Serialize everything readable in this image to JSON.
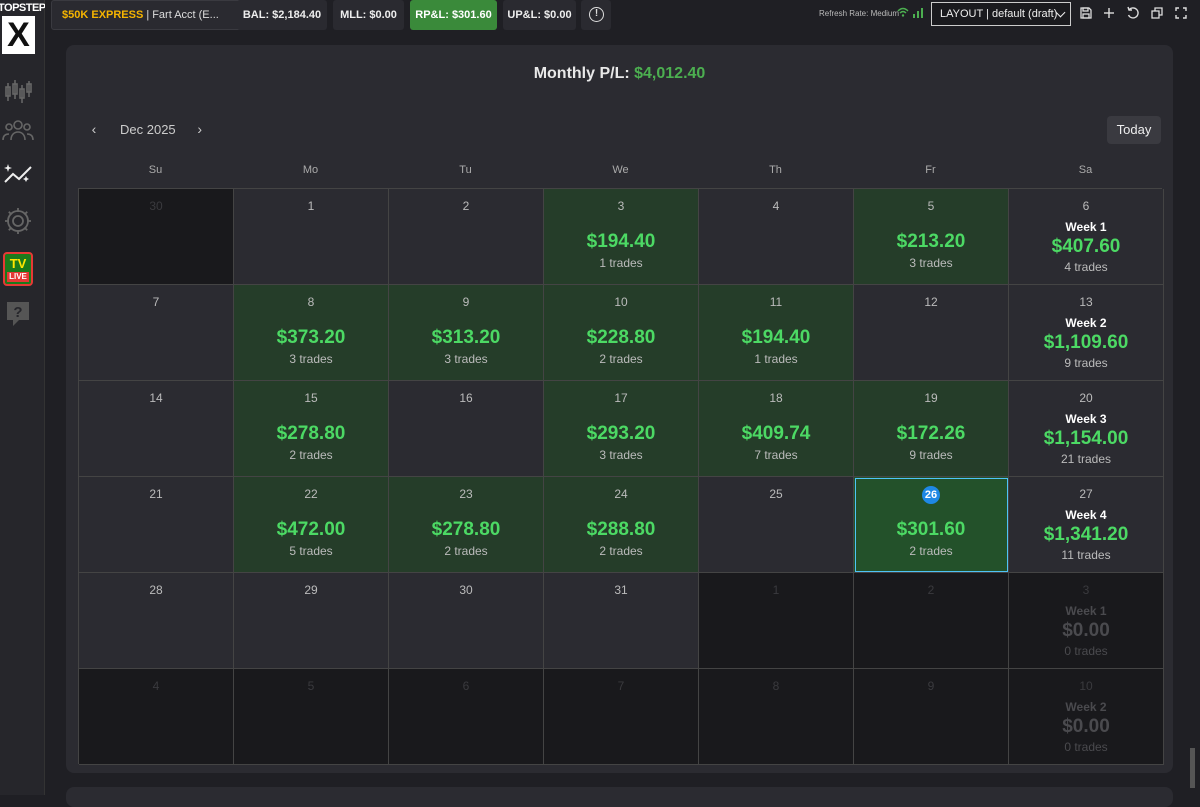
{
  "brand": {
    "name": "TOPSTEP",
    "mark": "X"
  },
  "topbar": {
    "account_tag": "$50K EXPRESS",
    "account_sep": "|",
    "account_name": "Fart Acct (E...",
    "bal": "BAL: $2,184.40",
    "mll": "MLL: $0.00",
    "rpl": "RP&L: $301.60",
    "upl": "UP&L: $0.00",
    "refresh_rate": "Refresh Rate: Medium",
    "layout": "LAYOUT | default (draft)"
  },
  "sidebar": {
    "tv_label": "TV",
    "live_label": "LIVE"
  },
  "calendar": {
    "monthly_label": "Monthly P/L:",
    "monthly_value": "$4,012.40",
    "month": "Dec 2025",
    "prev": "‹",
    "next": "›",
    "today_label": "Today",
    "days_of_week": [
      "Su",
      "Mo",
      "Tu",
      "We",
      "Th",
      "Fr",
      "Sa"
    ],
    "weeks": [
      [
        {
          "day": "30",
          "out": true
        },
        {
          "day": "1"
        },
        {
          "day": "2"
        },
        {
          "day": "3",
          "pnl": "$194.40",
          "trades": "1 trades"
        },
        {
          "day": "4"
        },
        {
          "day": "5",
          "pnl": "$213.20",
          "trades": "3 trades"
        },
        {
          "day": "6",
          "week": "Week 1",
          "week_pnl": "$407.60",
          "trades": "4 trades"
        }
      ],
      [
        {
          "day": "7"
        },
        {
          "day": "8",
          "pnl": "$373.20",
          "trades": "3 trades"
        },
        {
          "day": "9",
          "pnl": "$313.20",
          "trades": "3 trades"
        },
        {
          "day": "10",
          "pnl": "$228.80",
          "trades": "2 trades"
        },
        {
          "day": "11",
          "pnl": "$194.40",
          "trades": "1 trades"
        },
        {
          "day": "12"
        },
        {
          "day": "13",
          "week": "Week 2",
          "week_pnl": "$1,109.60",
          "trades": "9 trades"
        }
      ],
      [
        {
          "day": "14"
        },
        {
          "day": "15",
          "pnl": "$278.80",
          "trades": "2 trades"
        },
        {
          "day": "16"
        },
        {
          "day": "17",
          "pnl": "$293.20",
          "trades": "3 trades"
        },
        {
          "day": "18",
          "pnl": "$409.74",
          "trades": "7 trades"
        },
        {
          "day": "19",
          "pnl": "$172.26",
          "trades": "9 trades"
        },
        {
          "day": "20",
          "week": "Week 3",
          "week_pnl": "$1,154.00",
          "trades": "21 trades"
        }
      ],
      [
        {
          "day": "21"
        },
        {
          "day": "22",
          "pnl": "$472.00",
          "trades": "5 trades"
        },
        {
          "day": "23",
          "pnl": "$278.80",
          "trades": "2 trades"
        },
        {
          "day": "24",
          "pnl": "$288.80",
          "trades": "2 trades"
        },
        {
          "day": "25"
        },
        {
          "day": "26",
          "pnl": "$301.60",
          "trades": "2 trades",
          "today": true
        },
        {
          "day": "27",
          "week": "Week 4",
          "week_pnl": "$1,341.20",
          "trades": "11 trades"
        }
      ],
      [
        {
          "day": "28"
        },
        {
          "day": "29"
        },
        {
          "day": "30"
        },
        {
          "day": "31"
        },
        {
          "day": "1",
          "out": true
        },
        {
          "day": "2",
          "out": true
        },
        {
          "day": "3",
          "out": true,
          "week": "Week 1",
          "week_pnl": "$0.00",
          "trades": "0 trades"
        }
      ],
      [
        {
          "day": "4",
          "out": true
        },
        {
          "day": "5",
          "out": true
        },
        {
          "day": "6",
          "out": true
        },
        {
          "day": "7",
          "out": true
        },
        {
          "day": "8",
          "out": true
        },
        {
          "day": "9",
          "out": true
        },
        {
          "day": "10",
          "out": true,
          "week": "Week 2",
          "week_pnl": "$0.00",
          "trades": "0 trades"
        }
      ]
    ]
  }
}
